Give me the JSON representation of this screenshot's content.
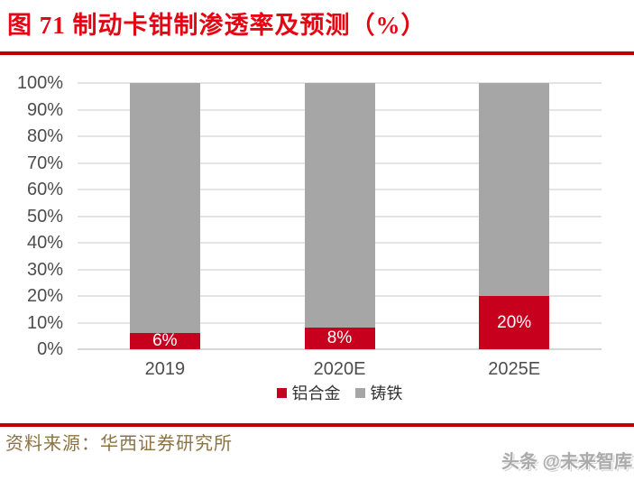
{
  "title": "图 71 制动卡钳制渗透率及预测（%）",
  "source": "资料来源：华西证券研究所",
  "watermark": "头条 @未来智库",
  "colors": {
    "title_red": "#E30613",
    "rule_red": "#C00000",
    "bar_red": "#C7001E",
    "bar_gray": "#A6A6A6",
    "source_brown": "#8C7343",
    "axis_text": "#4D4D4D"
  },
  "chart_data": {
    "type": "bar",
    "stacked": true,
    "title": "图 71 制动卡钳制渗透率及预测（%）",
    "categories": [
      "2019",
      "2020E",
      "2025E"
    ],
    "series": [
      {
        "name": "铝合金",
        "color": "#C7001E",
        "values": [
          6,
          8,
          20
        ]
      },
      {
        "name": "铸铁",
        "color": "#A6A6A6",
        "values": [
          94,
          92,
          80
        ]
      }
    ],
    "bar_labels": [
      "6%",
      "8%",
      "20%"
    ],
    "yticks": [
      "0%",
      "10%",
      "20%",
      "30%",
      "40%",
      "50%",
      "60%",
      "70%",
      "80%",
      "90%",
      "100%"
    ],
    "ylim": [
      0,
      100
    ],
    "ytick_step": 10,
    "xlabel": "",
    "ylabel": "",
    "grid": true,
    "legend_position": "bottom"
  }
}
